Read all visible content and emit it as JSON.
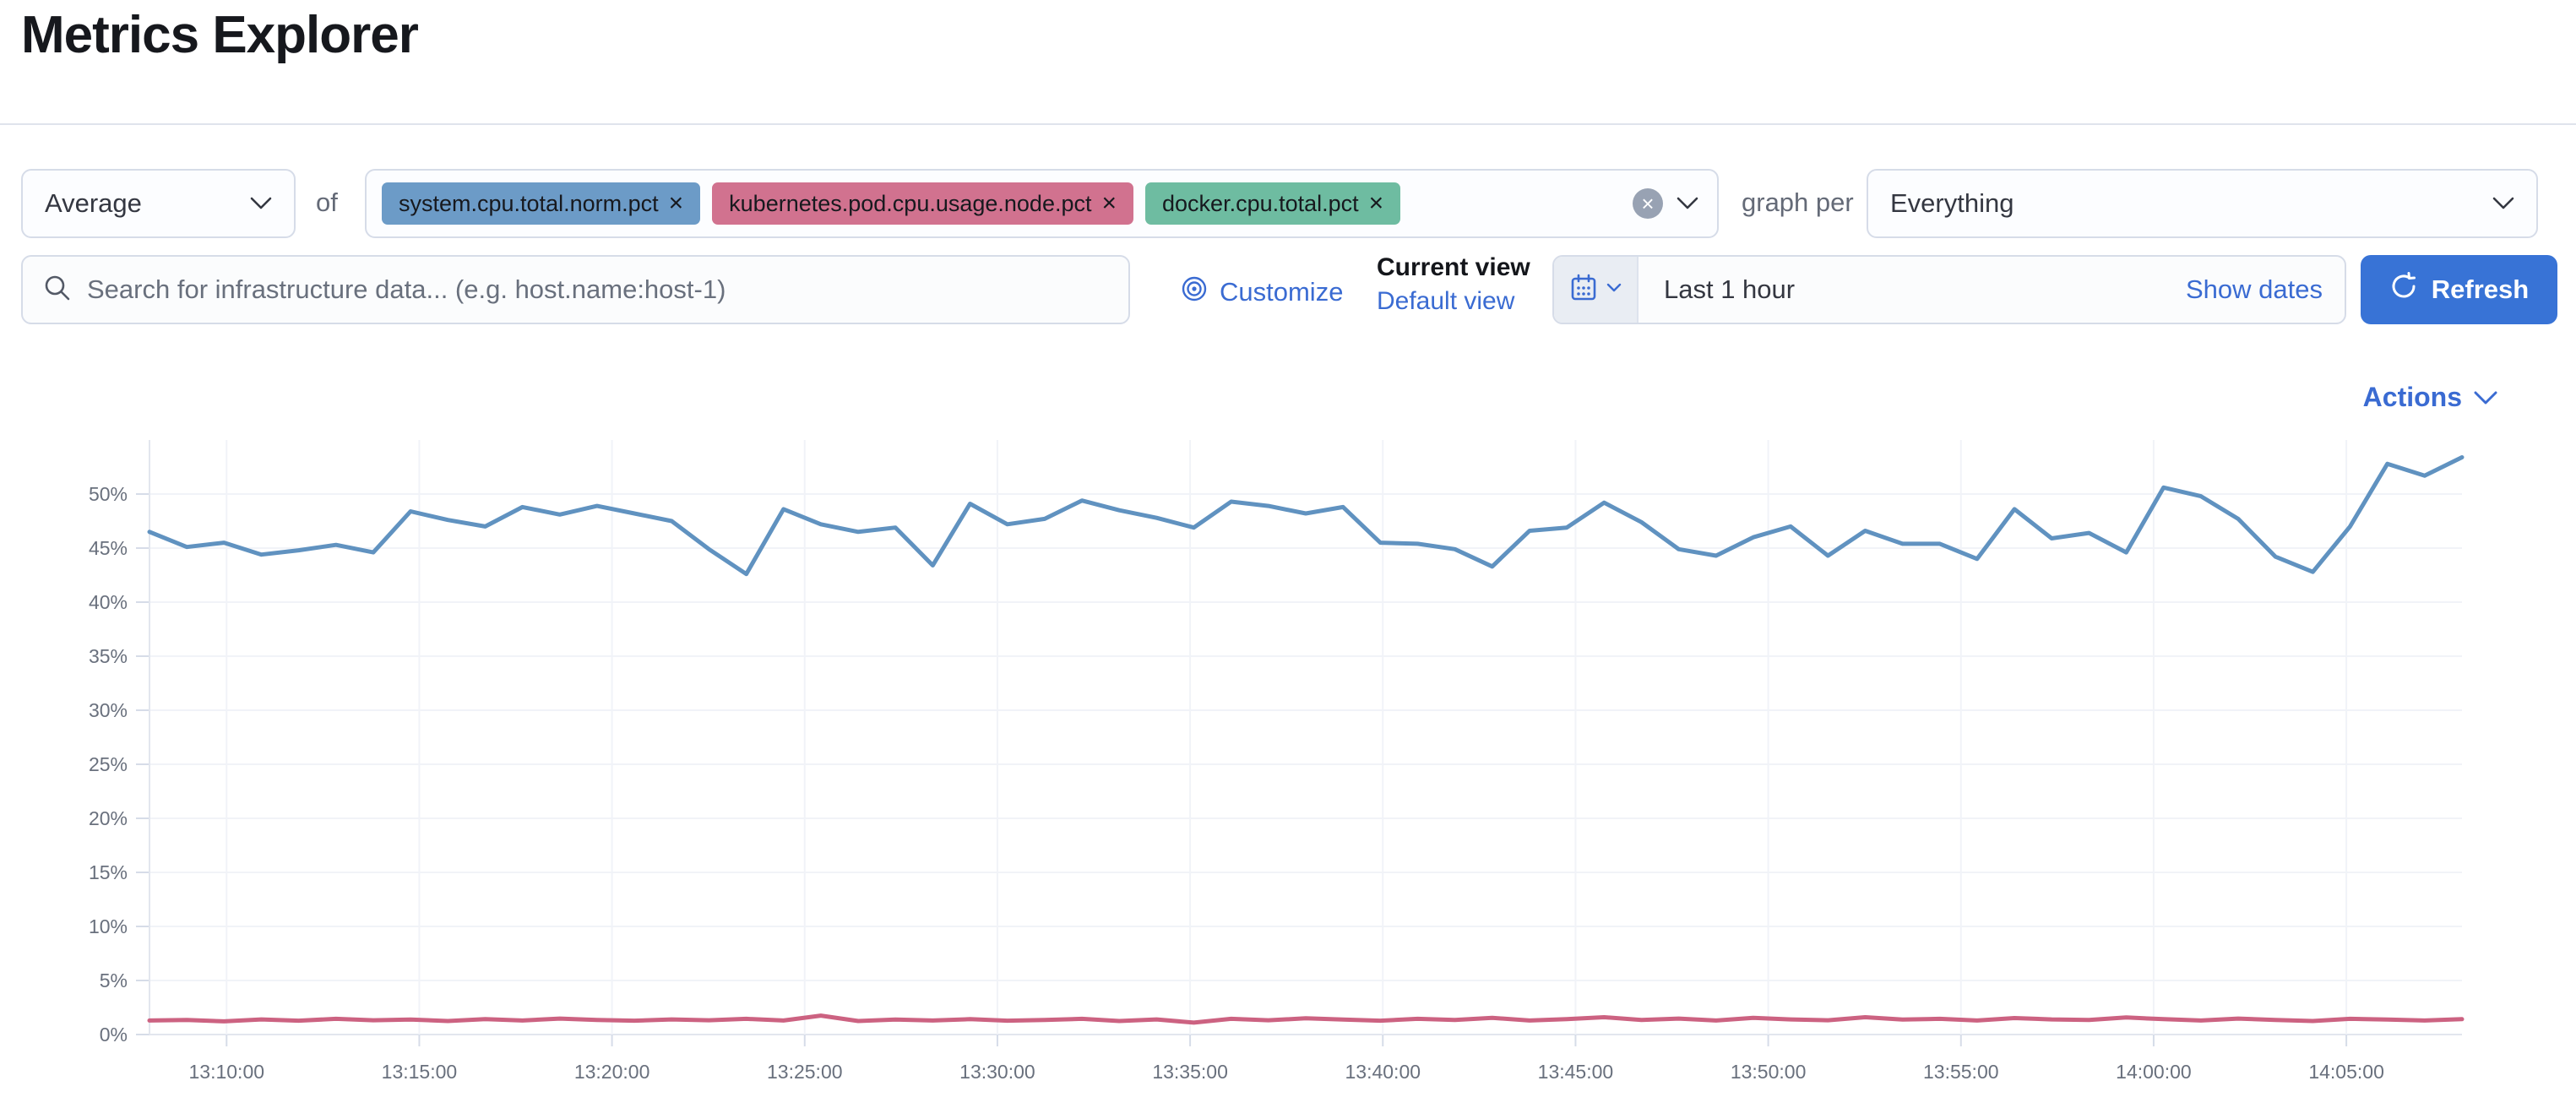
{
  "page": {
    "title": "Metrics Explorer"
  },
  "toolbar": {
    "aggregation": {
      "value": "Average"
    },
    "of_label": "of",
    "metrics": [
      {
        "label": "system.cpu.total.norm.pct",
        "color": "#6c9bc7",
        "remove_icon": "×"
      },
      {
        "label": "kubernetes.pod.cpu.usage.node.pct",
        "color": "#d1728f",
        "remove_icon": "×"
      },
      {
        "label": "docker.cpu.total.pct",
        "color": "#6ebca1",
        "remove_icon": "×"
      }
    ],
    "clear_icon": "×",
    "graph_per_label": "graph per",
    "group_by": {
      "value": "Everything"
    }
  },
  "searchbar": {
    "value": "",
    "placeholder": "Search for infrastructure data... (e.g. host.name:host-1)"
  },
  "view_controls": {
    "customize_label": "Customize",
    "current_view_label": "Current view",
    "default_view_label": "Default view"
  },
  "datepicker": {
    "value": "Last 1 hour",
    "show_dates_label": "Show dates",
    "refresh_label": "Refresh"
  },
  "actions": {
    "label": "Actions"
  },
  "chart_data": {
    "type": "line",
    "title": "",
    "xlabel": "",
    "ylabel": "",
    "grid": "on",
    "legend": "off",
    "ylim": [
      0,
      55
    ],
    "y_tick_step": 5,
    "y_ticks": [
      "0%",
      "5%",
      "10%",
      "15%",
      "20%",
      "25%",
      "30%",
      "35%",
      "40%",
      "45%",
      "50%"
    ],
    "x_range": [
      "13:08:00",
      "14:08:00"
    ],
    "x_ticks": [
      "13:10:00",
      "13:15:00",
      "13:20:00",
      "13:25:00",
      "13:30:00",
      "13:35:00",
      "13:40:00",
      "13:45:00",
      "13:50:00",
      "13:55:00",
      "14:00:00",
      "14:05:00"
    ],
    "axis_color": "#e2e6ee",
    "gridline_color": "#f1f3f8",
    "tick_label_color": "#69707d",
    "series": [
      {
        "name": "system.cpu.total.norm.pct",
        "color": "#6092c0",
        "unit": "%",
        "values": [
          46.5,
          45.1,
          45.5,
          44.4,
          44.8,
          45.3,
          44.6,
          48.4,
          47.6,
          47.0,
          48.8,
          48.1,
          48.9,
          48.2,
          47.5,
          44.9,
          42.6,
          48.6,
          47.2,
          46.5,
          46.9,
          43.4,
          49.1,
          47.2,
          47.7,
          49.4,
          48.5,
          47.8,
          46.9,
          49.3,
          48.9,
          48.2,
          48.8,
          45.5,
          45.4,
          44.9,
          43.3,
          46.6,
          46.9,
          49.2,
          47.4,
          44.9,
          44.3,
          46.0,
          47.0,
          44.3,
          46.6,
          45.4,
          45.4,
          44.0,
          48.6,
          45.9,
          46.4,
          44.6,
          50.6,
          49.8,
          47.7,
          44.2,
          42.8,
          47.0,
          52.8,
          51.7,
          53.4
        ]
      },
      {
        "name": "kubernetes.pod.cpu.usage.node.pct",
        "color": "#cc6281",
        "unit": "%",
        "values": [
          1.3,
          1.35,
          1.22,
          1.4,
          1.28,
          1.45,
          1.32,
          1.38,
          1.25,
          1.42,
          1.3,
          1.48,
          1.35,
          1.28,
          1.4,
          1.32,
          1.45,
          1.3,
          1.75,
          1.25,
          1.38,
          1.3,
          1.42,
          1.28,
          1.35,
          1.45,
          1.25,
          1.4,
          1.1,
          1.45,
          1.32,
          1.5,
          1.38,
          1.28,
          1.45,
          1.35,
          1.55,
          1.3,
          1.42,
          1.6,
          1.35,
          1.48,
          1.3,
          1.55,
          1.4,
          1.32,
          1.6,
          1.38,
          1.45,
          1.3,
          1.52,
          1.4,
          1.35,
          1.58,
          1.42,
          1.3,
          1.48,
          1.35,
          1.25,
          1.45,
          1.38,
          1.3,
          1.42
        ]
      }
    ]
  }
}
